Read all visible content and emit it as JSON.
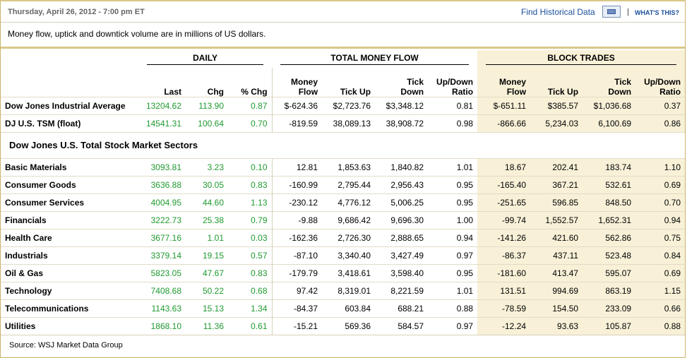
{
  "header": {
    "datetime": "Thursday, April 26, 2012 - 7:00 pm ET",
    "find_historical": "Find Historical Data",
    "separator": "|",
    "whats_this": "WHAT'S THIS?"
  },
  "note": "Money flow, uptick and downtick volume are in millions of US dollars.",
  "groups": {
    "daily": "DAILY",
    "total_money_flow": "TOTAL MONEY FLOW",
    "block_trades": "BLOCK TRADES"
  },
  "columns": {
    "last": "Last",
    "chg": "Chg",
    "pct_chg": "% Chg",
    "money_flow_1": "Money",
    "money_flow_2": "Flow",
    "tick_up": "Tick Up",
    "tick_down_1": "Tick",
    "tick_down_2": "Down",
    "ratio_1": "Up/Down",
    "ratio_2": "Ratio"
  },
  "section_title": "Dow Jones U.S. Total Stock Market Sectors",
  "index_rows": [
    {
      "name": "Dow Jones Industrial Average",
      "last": "13204.62",
      "chg": "113.90",
      "pct": "0.87",
      "mf": "$-624.36",
      "up": "$2,723.76",
      "down": "$3,348.12",
      "ratio": "0.81",
      "bmf": "$-651.11",
      "bup": "$385.57",
      "bdown": "$1,036.68",
      "bratio": "0.37"
    },
    {
      "name": "DJ U.S. TSM (float)",
      "last": "14541.31",
      "chg": "100.64",
      "pct": "0.70",
      "mf": "-819.59",
      "up": "38,089.13",
      "down": "38,908.72",
      "ratio": "0.98",
      "bmf": "-866.66",
      "bup": "5,234.03",
      "bdown": "6,100.69",
      "bratio": "0.86"
    }
  ],
  "sector_rows": [
    {
      "name": "Basic Materials",
      "last": "3093.81",
      "chg": "3.23",
      "pct": "0.10",
      "mf": "12.81",
      "up": "1,853.63",
      "down": "1,840.82",
      "ratio": "1.01",
      "bmf": "18.67",
      "bup": "202.41",
      "bdown": "183.74",
      "bratio": "1.10"
    },
    {
      "name": "Consumer Goods",
      "last": "3636.88",
      "chg": "30.05",
      "pct": "0.83",
      "mf": "-160.99",
      "up": "2,795.44",
      "down": "2,956.43",
      "ratio": "0.95",
      "bmf": "-165.40",
      "bup": "367.21",
      "bdown": "532.61",
      "bratio": "0.69"
    },
    {
      "name": "Consumer Services",
      "last": "4004.95",
      "chg": "44.60",
      "pct": "1.13",
      "mf": "-230.12",
      "up": "4,776.12",
      "down": "5,006.25",
      "ratio": "0.95",
      "bmf": "-251.65",
      "bup": "596.85",
      "bdown": "848.50",
      "bratio": "0.70"
    },
    {
      "name": "Financials",
      "last": "3222.73",
      "chg": "25.38",
      "pct": "0.79",
      "mf": "-9.88",
      "up": "9,686.42",
      "down": "9,696.30",
      "ratio": "1.00",
      "bmf": "-99.74",
      "bup": "1,552.57",
      "bdown": "1,652.31",
      "bratio": "0.94"
    },
    {
      "name": "Health Care",
      "last": "3677.16",
      "chg": "1.01",
      "pct": "0.03",
      "mf": "-162.36",
      "up": "2,726.30",
      "down": "2,888.65",
      "ratio": "0.94",
      "bmf": "-141.26",
      "bup": "421.60",
      "bdown": "562.86",
      "bratio": "0.75"
    },
    {
      "name": "Industrials",
      "last": "3379.14",
      "chg": "19.15",
      "pct": "0.57",
      "mf": "-87.10",
      "up": "3,340.40",
      "down": "3,427.49",
      "ratio": "0.97",
      "bmf": "-86.37",
      "bup": "437.11",
      "bdown": "523.48",
      "bratio": "0.84"
    },
    {
      "name": "Oil & Gas",
      "last": "5823.05",
      "chg": "47.67",
      "pct": "0.83",
      "mf": "-179.79",
      "up": "3,418.61",
      "down": "3,598.40",
      "ratio": "0.95",
      "bmf": "-181.60",
      "bup": "413.47",
      "bdown": "595.07",
      "bratio": "0.69"
    },
    {
      "name": "Technology",
      "last": "7408.68",
      "chg": "50.22",
      "pct": "0.68",
      "mf": "97.42",
      "up": "8,319.01",
      "down": "8,221.59",
      "ratio": "1.01",
      "bmf": "131.51",
      "bup": "994.69",
      "bdown": "863.19",
      "bratio": "1.15"
    },
    {
      "name": "Telecommunications",
      "last": "1143.63",
      "chg": "15.13",
      "pct": "1.34",
      "mf": "-84.37",
      "up": "603.84",
      "down": "688.21",
      "ratio": "0.88",
      "bmf": "-78.59",
      "bup": "154.50",
      "bdown": "233.09",
      "bratio": "0.66"
    },
    {
      "name": "Utilities",
      "last": "1868.10",
      "chg": "11.36",
      "pct": "0.61",
      "mf": "-15.21",
      "up": "569.36",
      "down": "584.57",
      "ratio": "0.97",
      "bmf": "-12.24",
      "bup": "93.63",
      "bdown": "105.87",
      "bratio": "0.88"
    }
  ],
  "source": "Source: WSJ Market Data Group",
  "colors": {
    "positive": "#1f9a2f",
    "block_bg": "#f8f1d8",
    "link": "#1a4f9c",
    "border": "#d9c88a"
  },
  "icons": {
    "historical": "calendar-window-icon"
  }
}
